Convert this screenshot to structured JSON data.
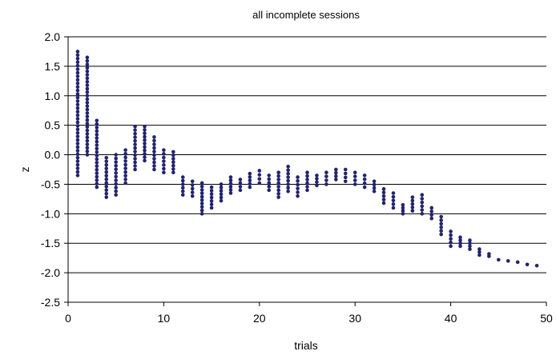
{
  "chart_data": {
    "type": "scatter",
    "title": "all incomplete sessions",
    "xlabel": "trials",
    "ylabel": "z",
    "xlim": [
      0,
      50
    ],
    "ylim": [
      -2.5,
      2.0
    ],
    "x_ticks": [
      "0",
      "10",
      "20",
      "30",
      "40",
      "50"
    ],
    "y_ticks": [
      "2.0",
      "1.5",
      "1.0",
      "0.5",
      "0.0",
      "-0.5",
      "-1.0",
      "-1.5",
      "-2.0",
      "-2.5"
    ],
    "grid": "horizontal",
    "legend": "none",
    "marker_color": "#1f2277",
    "series": [
      {
        "name": "",
        "columns": [
          {
            "x": 1,
            "ymin": -0.35,
            "ymax": 1.75
          },
          {
            "x": 2,
            "ymin": 0.0,
            "ymax": 1.65
          },
          {
            "x": 3,
            "ymin": -0.55,
            "ymax": 0.58
          },
          {
            "x": 4,
            "ymin": -0.72,
            "ymax": -0.05
          },
          {
            "x": 5,
            "ymin": -0.68,
            "ymax": 0.0
          },
          {
            "x": 6,
            "ymin": -0.48,
            "ymax": 0.08
          },
          {
            "x": 7,
            "ymin": -0.25,
            "ymax": 0.48
          },
          {
            "x": 8,
            "ymin": -0.1,
            "ymax": 0.48
          },
          {
            "x": 9,
            "ymin": -0.25,
            "ymax": 0.3
          },
          {
            "x": 10,
            "ymin": -0.3,
            "ymax": 0.08
          },
          {
            "x": 11,
            "ymin": -0.3,
            "ymax": 0.05
          },
          {
            "x": 12,
            "ymin": -0.68,
            "ymax": -0.38
          },
          {
            "x": 13,
            "ymin": -0.7,
            "ymax": -0.45
          },
          {
            "x": 14,
            "ymin": -1.0,
            "ymax": -0.48
          },
          {
            "x": 15,
            "ymin": -0.9,
            "ymax": -0.55
          },
          {
            "x": 16,
            "ymin": -0.78,
            "ymax": -0.5
          },
          {
            "x": 17,
            "ymin": -0.65,
            "ymax": -0.38
          },
          {
            "x": 18,
            "ymin": -0.6,
            "ymax": -0.42
          },
          {
            "x": 19,
            "ymin": -0.55,
            "ymax": -0.32
          },
          {
            "x": 20,
            "ymin": -0.48,
            "ymax": -0.27
          },
          {
            "x": 21,
            "ymin": -0.6,
            "ymax": -0.35
          },
          {
            "x": 22,
            "ymin": -0.72,
            "ymax": -0.3
          },
          {
            "x": 23,
            "ymin": -0.62,
            "ymax": -0.2
          },
          {
            "x": 24,
            "ymin": -0.7,
            "ymax": -0.38
          },
          {
            "x": 25,
            "ymin": -0.6,
            "ymax": -0.3
          },
          {
            "x": 26,
            "ymin": -0.52,
            "ymax": -0.35
          },
          {
            "x": 27,
            "ymin": -0.5,
            "ymax": -0.3
          },
          {
            "x": 28,
            "ymin": -0.42,
            "ymax": -0.25
          },
          {
            "x": 29,
            "ymin": -0.45,
            "ymax": -0.25
          },
          {
            "x": 30,
            "ymin": -0.5,
            "ymax": -0.3
          },
          {
            "x": 31,
            "ymin": -0.55,
            "ymax": -0.35
          },
          {
            "x": 32,
            "ymin": -0.62,
            "ymax": -0.45
          },
          {
            "x": 33,
            "ymin": -0.82,
            "ymax": -0.58
          },
          {
            "x": 34,
            "ymin": -0.9,
            "ymax": -0.65
          },
          {
            "x": 35,
            "ymin": -1.0,
            "ymax": -0.85
          },
          {
            "x": 36,
            "ymin": -0.95,
            "ymax": -0.72
          },
          {
            "x": 37,
            "ymin": -1.0,
            "ymax": -0.68
          },
          {
            "x": 38,
            "ymin": -1.08,
            "ymax": -0.9
          },
          {
            "x": 39,
            "ymin": -1.35,
            "ymax": -1.05
          },
          {
            "x": 40,
            "ymin": -1.55,
            "ymax": -1.3
          },
          {
            "x": 41,
            "ymin": -1.55,
            "ymax": -1.4
          },
          {
            "x": 42,
            "ymin": -1.6,
            "ymax": -1.45
          },
          {
            "x": 43,
            "ymin": -1.7,
            "ymax": -1.6
          },
          {
            "x": 44,
            "ymin": -1.72,
            "ymax": -1.68
          },
          {
            "x": 45,
            "ymin": -1.78,
            "ymax": -1.76
          },
          {
            "x": 46,
            "ymin": -1.8,
            "ymax": -1.78
          },
          {
            "x": 47,
            "ymin": -1.82,
            "ymax": -1.8
          },
          {
            "x": 48,
            "ymin": -1.86,
            "ymax": -1.84
          },
          {
            "x": 49,
            "ymin": -1.88,
            "ymax": -1.86
          }
        ]
      }
    ]
  }
}
